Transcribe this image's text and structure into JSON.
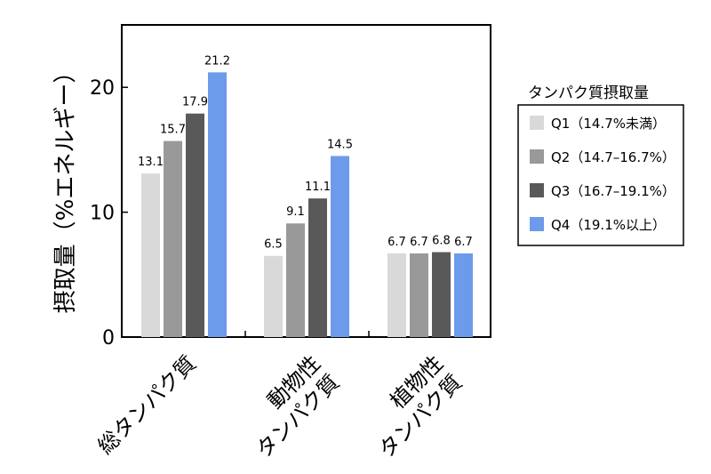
{
  "chart_data": {
    "type": "bar",
    "categories": [
      "総タンパク質",
      "動物性\nタンパク質",
      "植物性\nタンパク質"
    ],
    "series": [
      {
        "name": "Q1（14.7%未満）",
        "values": [
          13.1,
          6.5,
          6.7
        ],
        "color": "#d9d9d9"
      },
      {
        "name": "Q2（14.7–16.7%）",
        "values": [
          15.7,
          9.1,
          6.7
        ],
        "color": "#999999"
      },
      {
        "name": "Q3（16.7–19.1%）",
        "values": [
          17.9,
          11.1,
          6.8
        ],
        "color": "#595959"
      },
      {
        "name": "Q4（19.1%以上）",
        "values": [
          21.2,
          14.5,
          6.7
        ],
        "color": "#6b9bea"
      }
    ],
    "value_labels": [
      [
        "13.1",
        "6.5",
        "6.7"
      ],
      [
        "15.7",
        "9.1",
        "6.7"
      ],
      [
        "17.9",
        "11.1",
        "6.8"
      ],
      [
        "21.2",
        "14.5",
        "6.7"
      ]
    ],
    "ylabel": "摂取量（%エネルギー）",
    "yticks": [
      0,
      10,
      20
    ],
    "ylim": [
      0,
      25
    ],
    "legend_title": "タンパク質摂取量",
    "legend_position": "right",
    "grid": false
  }
}
